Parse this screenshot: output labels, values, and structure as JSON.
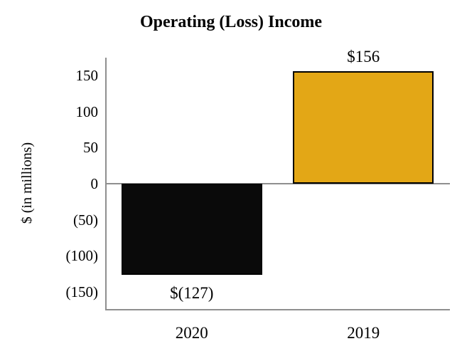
{
  "title": "Operating (Loss) Income",
  "chart_data": {
    "type": "bar",
    "title": "Operating (Loss) Income",
    "xlabel": "",
    "ylabel": "$ (in millions)",
    "categories": [
      "2020",
      "2019"
    ],
    "values": [
      -127,
      156
    ],
    "value_labels": [
      "$(127)",
      "$156"
    ],
    "bar_colors": [
      "#0a0a0a",
      "#e3a716"
    ],
    "bar_border_color": "#000000",
    "ylim": [
      -175,
      175
    ],
    "yticks": [
      150,
      100,
      50,
      0,
      -50,
      -100,
      -150
    ],
    "ytick_labels": [
      "150",
      "100",
      "50",
      "0",
      "(50)",
      "(100)",
      "(150)"
    ],
    "grid": false,
    "legend": "none",
    "axis_line_color": "#8f8f8f",
    "text_color": "#000000",
    "background_color": "#ffffff"
  }
}
